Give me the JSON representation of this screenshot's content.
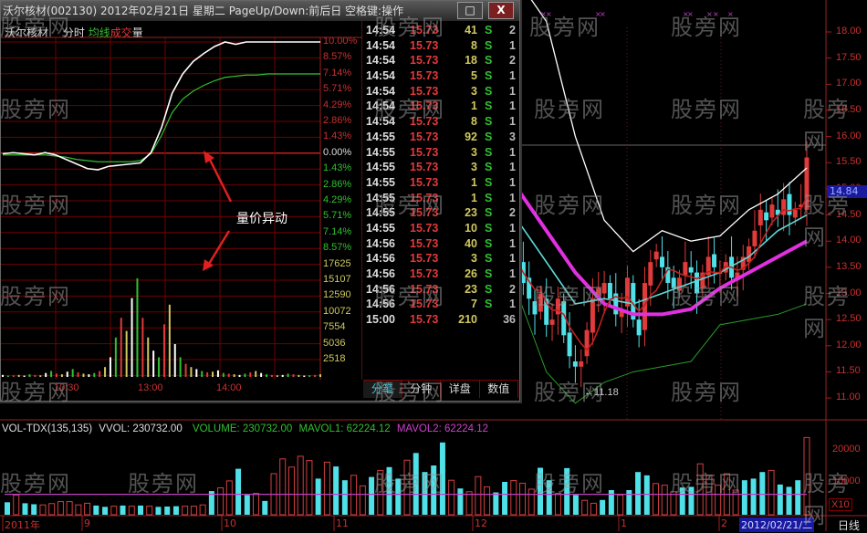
{
  "window": {
    "title": "沃尔核材(002130) 2012年02月21日 星期二 PageUp/Down:前后日 空格键:操作",
    "maximize_icon": "□",
    "close_icon": "X"
  },
  "intraday": {
    "stock_name": "沃尔核材",
    "mode": "分时",
    "avg_label": "均线",
    "vol_label_a": "成",
    "vol_label_b": "交",
    "vol_label_c": "量",
    "pct_up": [
      "10.00%",
      "8.57%",
      "7.14%",
      "5.71%",
      "4.29%",
      "2.86%",
      "1.43%"
    ],
    "pct_zero": "0.00%",
    "pct_down": [
      "1.43%",
      "2.86%",
      "4.29%",
      "5.71%",
      "7.14%",
      "8.57%"
    ],
    "vol_axis": [
      "17625",
      "15107",
      "12590",
      "10072",
      "7554",
      "5036",
      "2518"
    ],
    "time_labels": [
      "10:30",
      "13:00",
      "14:00"
    ],
    "annotation": "量价异动",
    "price_pct": [
      0.2,
      0.3,
      0.2,
      0.1,
      0.3,
      0.1,
      -0.3,
      -0.7,
      -1.1,
      -1.2,
      -0.9,
      -0.8,
      -0.7,
      -0.6,
      0.3,
      2.5,
      5.5,
      7.2,
      8.3,
      9.0,
      9.6,
      10,
      9.8,
      10,
      10,
      10,
      10,
      10,
      10,
      10,
      10
    ],
    "avg_pct": [
      0.1,
      0.1,
      0.1,
      0.1,
      0.1,
      0.0,
      -0.1,
      -0.3,
      -0.4,
      -0.5,
      -0.5,
      -0.5,
      -0.5,
      -0.4,
      0.2,
      1.8,
      3.8,
      5.0,
      5.7,
      6.2,
      6.6,
      6.9,
      7.0,
      7.1,
      7.1,
      7.2,
      7.2,
      7.2,
      7.2,
      7.2,
      7.2
    ],
    "volumes": [
      300,
      200,
      250,
      300,
      200,
      400,
      300,
      250,
      600,
      900,
      500,
      400,
      800,
      1200,
      700,
      500,
      400,
      600,
      900,
      1500,
      3000,
      6000,
      9000,
      7000,
      12000,
      15000,
      9000,
      6000,
      4000,
      3000,
      8000,
      11000,
      5000,
      3000,
      2000,
      1500,
      1200,
      900,
      700,
      800,
      1000,
      600,
      500,
      400,
      300,
      500,
      700,
      900,
      600,
      400,
      300,
      250,
      300,
      500,
      400,
      300,
      200,
      250,
      300,
      400
    ]
  },
  "trades": [
    {
      "time": "14:54",
      "price": "15.73",
      "vol": "41",
      "bs": "S",
      "n": "2"
    },
    {
      "time": "14:54",
      "price": "15.73",
      "vol": "8",
      "bs": "S",
      "n": "1"
    },
    {
      "time": "14:54",
      "price": "15.73",
      "vol": "18",
      "bs": "S",
      "n": "2"
    },
    {
      "time": "14:54",
      "price": "15.73",
      "vol": "5",
      "bs": "S",
      "n": "1"
    },
    {
      "time": "14:54",
      "price": "15.73",
      "vol": "3",
      "bs": "S",
      "n": "1"
    },
    {
      "time": "14:54",
      "price": "15.73",
      "vol": "1",
      "bs": "S",
      "n": "1"
    },
    {
      "time": "14:54",
      "price": "15.73",
      "vol": "8",
      "bs": "S",
      "n": "1"
    },
    {
      "time": "14:55",
      "price": "15.73",
      "vol": "92",
      "bs": "S",
      "n": "3"
    },
    {
      "time": "14:55",
      "price": "15.73",
      "vol": "3",
      "bs": "S",
      "n": "1"
    },
    {
      "time": "14:55",
      "price": "15.73",
      "vol": "3",
      "bs": "S",
      "n": "1"
    },
    {
      "time": "14:55",
      "price": "15.73",
      "vol": "1",
      "bs": "S",
      "n": "1"
    },
    {
      "time": "14:55",
      "price": "15.73",
      "vol": "1",
      "bs": "S",
      "n": "1"
    },
    {
      "time": "14:55",
      "price": "15.73",
      "vol": "23",
      "bs": "S",
      "n": "2"
    },
    {
      "time": "14:55",
      "price": "15.73",
      "vol": "10",
      "bs": "S",
      "n": "1"
    },
    {
      "time": "14:56",
      "price": "15.73",
      "vol": "40",
      "bs": "S",
      "n": "1"
    },
    {
      "time": "14:56",
      "price": "15.73",
      "vol": "3",
      "bs": "S",
      "n": "1"
    },
    {
      "time": "14:56",
      "price": "15.73",
      "vol": "26",
      "bs": "S",
      "n": "1"
    },
    {
      "time": "14:56",
      "price": "15.73",
      "vol": "23",
      "bs": "S",
      "n": "2"
    },
    {
      "time": "14:56",
      "price": "15.73",
      "vol": "7",
      "bs": "S",
      "n": "1"
    },
    {
      "time": "15:00",
      "price": "15.73",
      "vol": "210",
      "bs": "",
      "n": "36"
    }
  ],
  "tabs": [
    {
      "label": "分笔",
      "active": true
    },
    {
      "label": "分钟"
    },
    {
      "label": "详盘"
    },
    {
      "label": "数值"
    }
  ],
  "daily": {
    "price_axis": [
      "18.00",
      "17.50",
      "17.00",
      "16.50",
      "16.00",
      "15.50",
      "15.00",
      "14.50",
      "14.00",
      "13.50",
      "13.00",
      "12.50",
      "12.00",
      "11.50",
      "11.00"
    ],
    "current_price": "14.84",
    "low_marker": "←11.18",
    "closes": [
      13.6,
      13.2,
      12.9,
      12.6,
      13.0,
      12.4,
      12.5,
      12.9,
      12.2,
      11.8,
      11.6,
      11.7,
      12.3,
      12.9,
      13.1,
      13.2,
      12.9,
      12.6,
      12.7,
      13.3,
      12.5,
      12.2,
      13.2,
      13.6,
      13.8,
      13.5,
      13.2,
      13.1,
      13.3,
      13.6,
      13.4,
      13.0,
      13.4,
      13.7,
      13.5,
      13.4,
      13.6,
      13.3,
      13.4,
      13.7,
      13.9,
      14.2,
      14.6,
      14.4,
      14.7,
      14.5,
      14.8,
      14.5,
      14.6,
      14.7,
      15.6
    ],
    "upper_band": [
      19.0,
      18.2,
      16.0,
      14.4,
      13.8,
      14.2,
      14.0,
      14.1,
      14.6,
      14.9,
      15.4
    ],
    "lower_band": [
      13.0,
      11.5,
      10.9,
      11.3,
      11.5,
      11.6,
      11.7,
      12.4,
      12.5,
      12.6,
      12.8
    ],
    "ma_cyan": [
      14.4,
      13.6,
      12.8,
      12.9,
      12.8,
      13.0,
      13.2,
      13.4,
      13.7,
      14.2,
      14.5
    ],
    "ma_magenta": [
      15.0,
      14.2,
      13.4,
      12.8,
      12.6,
      12.6,
      12.7,
      13.1,
      13.4,
      13.7,
      14.0
    ],
    "period": "日线"
  },
  "volume_panel": {
    "indicator": "VOL-TDX(135,135)",
    "vvol": "VVOL: 230732.00",
    "volume": "VOLUME: 230732.00",
    "mavol1": "MAVOL1: 62224.12",
    "mavol2": "MAVOL2: 62224.12",
    "axis": [
      "20000",
      "10000"
    ],
    "unit": "X10",
    "mavol_level": 6222,
    "values": [
      3800,
      6000,
      3500,
      3200,
      3000,
      3400,
      4000,
      4000,
      3000,
      3500,
      2800,
      2400,
      2600,
      2800,
      2600,
      2800,
      2600,
      2400,
      2500,
      2600,
      2600,
      2600,
      3000,
      7200,
      8200,
      10300,
      14000,
      6000,
      6500,
      4200,
      12500,
      17000,
      14500,
      17800,
      16500,
      11000,
      16000,
      14700,
      10500,
      12000,
      8800,
      11500,
      13500,
      14500,
      11000,
      16600,
      18800,
      13000,
      15000,
      22000,
      10500,
      8000,
      7000,
      11600,
      8500,
      6800,
      10000,
      10400,
      9600,
      7800,
      14300,
      10500,
      6500,
      14200,
      6000,
      4400,
      3500,
      4500,
      7500,
      6000,
      7500,
      13000,
      12000,
      9500,
      9000,
      7000,
      8300,
      8500,
      15500,
      12000,
      9000,
      12500,
      7500,
      10500,
      11000,
      13000,
      13500,
      9200,
      8500,
      10500,
      23500
    ],
    "down_flags": "1011000000110101011100010011010000010110010110111101000110001101100110111000110000011101110",
    "date_labels": [
      "2011年",
      "9",
      "10",
      "11",
      "12",
      "1",
      "2"
    ],
    "current_date": "2012/02/21/二"
  },
  "watermark": "股旁网",
  "colors": {
    "up": "#e03a3a",
    "down": "#50e0e8",
    "magenta": "#e030e0",
    "grid": "#800000"
  }
}
